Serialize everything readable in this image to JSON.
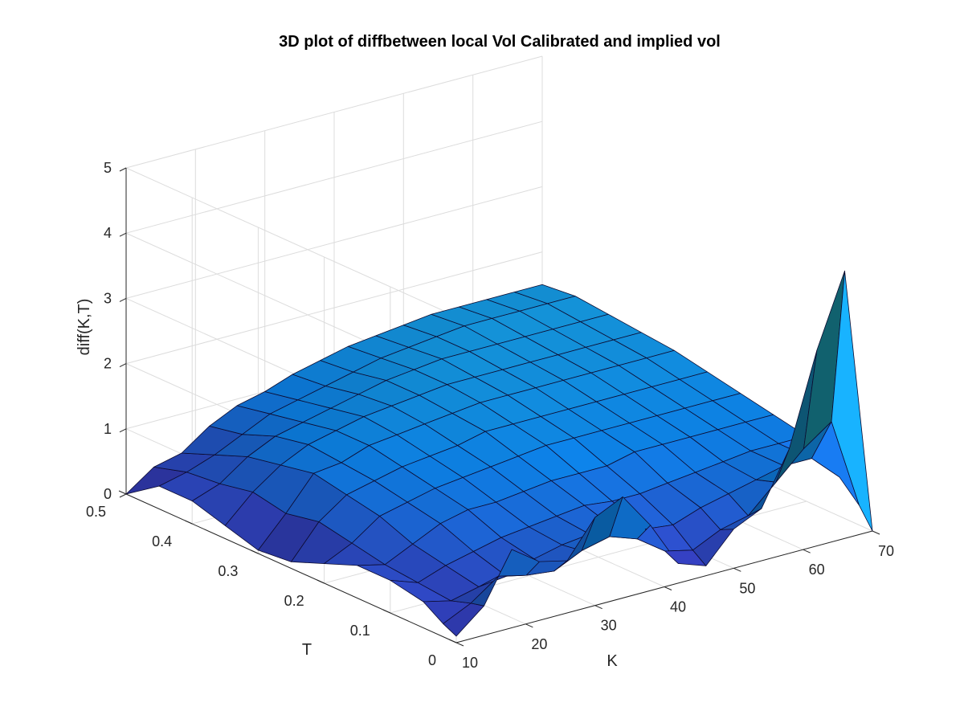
{
  "chart_data": {
    "type": "surface",
    "title": "3D plot of diffbetween local Vol Calibrated and implied vol",
    "xlabel": "K",
    "ylabel": "T",
    "zlabel": "diff(K,T)",
    "xlim": [
      10,
      70
    ],
    "ylim": [
      0,
      0.5
    ],
    "zlim": [
      0,
      5
    ],
    "xticks": [
      "10",
      "20",
      "30",
      "40",
      "50",
      "60",
      "70"
    ],
    "yticks": [
      "0",
      "0.1",
      "0.2",
      "0.3",
      "0.4",
      "0.5"
    ],
    "zticks": [
      "0",
      "1",
      "2",
      "3",
      "4",
      "5"
    ],
    "grid": true,
    "colormap": "parula-low",
    "colors": {
      "low": "#3e26a8",
      "mid": "#0c7bdc",
      "high": "#1fb0c8"
    },
    "K": [
      10,
      14,
      18,
      22,
      26,
      30,
      34,
      38,
      42,
      46,
      50,
      54,
      58,
      62,
      66,
      70
    ],
    "T": [
      0,
      0.02,
      0.05,
      0.1,
      0.15,
      0.2,
      0.25,
      0.3,
      0.35,
      0.4,
      0.45,
      0.5
    ],
    "Z": [
      [
        0.1,
        0.45,
        1.2,
        0.9,
        0.8,
        1.35,
        1.55,
        1.0,
        0.3,
        0.15,
        0.6,
        0.8,
        1.6,
        3.0,
        4.1,
        0.0
      ],
      [
        0.2,
        0.4,
        0.7,
        0.6,
        0.55,
        0.75,
        0.85,
        0.7,
        0.4,
        0.3,
        0.5,
        0.6,
        1.0,
        1.4,
        1.7,
        0.3
      ],
      [
        0.4,
        0.3,
        0.4,
        0.45,
        0.6,
        0.7,
        0.75,
        0.7,
        0.6,
        0.55,
        0.7,
        0.8,
        0.9,
        1.0,
        1.0,
        0.6
      ],
      [
        0.5,
        0.35,
        0.5,
        0.6,
        0.7,
        0.75,
        0.8,
        0.85,
        0.8,
        0.8,
        0.85,
        0.9,
        0.95,
        1.0,
        1.0,
        1.0
      ],
      [
        0.5,
        0.4,
        0.6,
        0.8,
        0.9,
        0.9,
        0.95,
        1.0,
        1.0,
        1.0,
        1.1,
        1.1,
        1.1,
        1.1,
        1.1,
        1.1
      ],
      [
        0.3,
        0.5,
        0.8,
        0.9,
        1.0,
        1.05,
        1.1,
        1.15,
        1.2,
        1.2,
        1.2,
        1.2,
        1.2,
        1.2,
        1.2,
        1.2
      ],
      [
        0.1,
        0.6,
        0.9,
        1.0,
        1.1,
        1.15,
        1.2,
        1.3,
        1.3,
        1.3,
        1.3,
        1.3,
        1.3,
        1.3,
        1.3,
        1.3
      ],
      [
        0.05,
        0.5,
        1.0,
        1.05,
        1.2,
        1.25,
        1.3,
        1.35,
        1.4,
        1.4,
        1.4,
        1.4,
        1.4,
        1.4,
        1.4,
        1.4
      ],
      [
        0.2,
        0.6,
        0.9,
        1.1,
        1.2,
        1.3,
        1.35,
        1.4,
        1.45,
        1.45,
        1.45,
        1.45,
        1.45,
        1.45,
        1.45,
        1.45
      ],
      [
        0.35,
        0.5,
        0.8,
        1.0,
        1.1,
        1.2,
        1.3,
        1.4,
        1.45,
        1.5,
        1.5,
        1.5,
        1.5,
        1.5,
        1.5,
        1.5
      ],
      [
        0.35,
        0.45,
        0.6,
        0.8,
        1.0,
        1.1,
        1.2,
        1.3,
        1.4,
        1.45,
        1.5,
        1.55,
        1.55,
        1.55,
        1.55,
        1.55
      ],
      [
        0.0,
        0.3,
        0.4,
        0.7,
        0.9,
        1.0,
        1.15,
        1.25,
        1.35,
        1.4,
        1.45,
        1.5,
        1.5,
        1.5,
        1.5,
        1.5
      ]
    ]
  }
}
